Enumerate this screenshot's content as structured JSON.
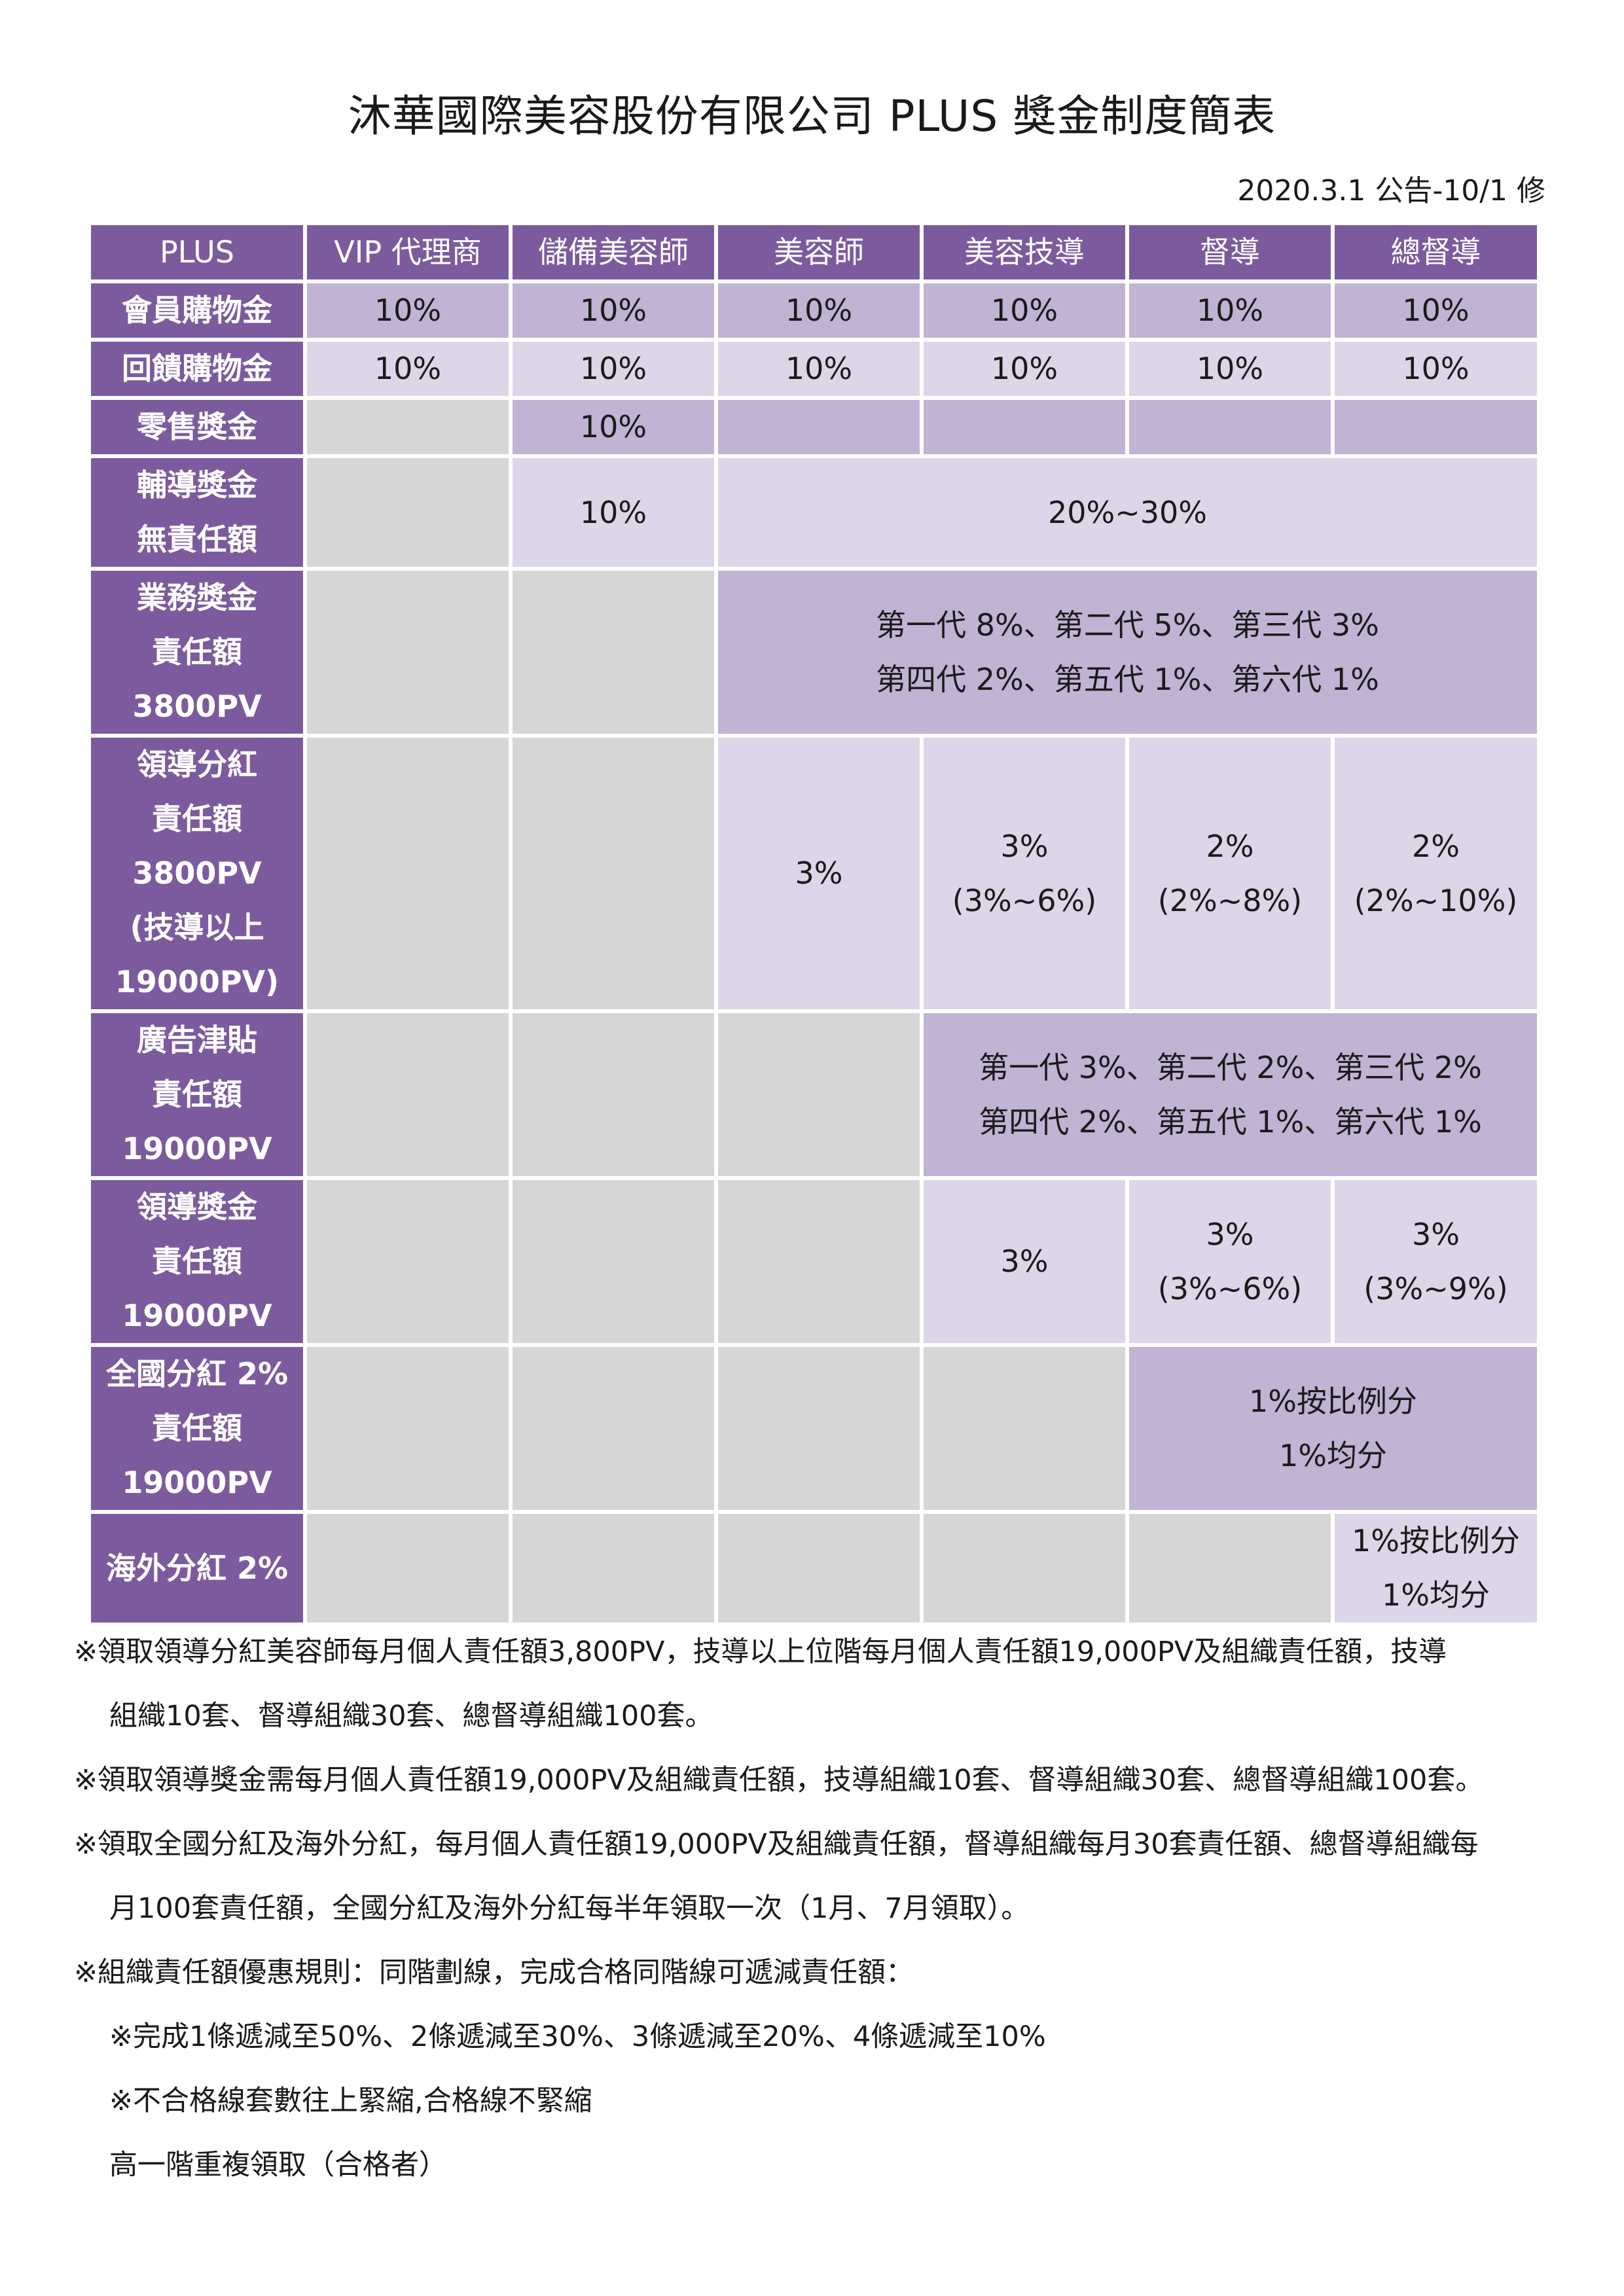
{
  "title": "沐華國際美容股份有限公司 PLUS 獎金制度簡表",
  "date": "2020.3.1 公告-10/1 修",
  "table": {
    "headers": [
      "PLUS",
      "VIP 代理商",
      "儲備美容師",
      "美容師",
      "美容技導",
      "督導",
      "總督導"
    ],
    "rows": {
      "member": {
        "label": "會員購物金",
        "values": [
          "10%",
          "10%",
          "10%",
          "10%",
          "10%",
          "10%"
        ]
      },
      "feedback": {
        "label": "回饋購物金",
        "values": [
          "10%",
          "10%",
          "10%",
          "10%",
          "10%",
          "10%"
        ]
      },
      "retail": {
        "label": "零售獎金",
        "value": "10%"
      },
      "coaching": {
        "label1": "輔導獎金",
        "label2": "無責任額",
        "value_reserve": "10%",
        "value_span": "20%~30%"
      },
      "business": {
        "label1": "業務獎金",
        "label2": "責任額",
        "label3": "3800PV",
        "line1": "第一代  8%、第二代  5%、第三代  3%",
        "line2": "第四代  2%、第五代  1%、第六代  1%"
      },
      "leadership_dividend": {
        "label1": "領導分紅",
        "label2": "責任額",
        "label3": "3800PV",
        "label4": "(技導以上",
        "label5": "19000PV)",
        "beautician": "3%",
        "tech_main": "3%",
        "tech_range": "(3%~6%)",
        "supervisor_main": "2%",
        "supervisor_range": "(2%~8%)",
        "chief_main": "2%",
        "chief_range": "(2%~10%)"
      },
      "advertising": {
        "label1": "廣告津貼",
        "label2": "責任額",
        "label3": "19000PV",
        "line1": "第一代  3%、第二代  2%、第三代  2%",
        "line2": "第四代  2%、第五代  1%、第六代  1%"
      },
      "leadership_bonus": {
        "label1": "領導獎金",
        "label2": "責任額",
        "label3": "19000PV",
        "tech": "3%",
        "supervisor_main": "3%",
        "supervisor_range": "(3%~6%)",
        "chief_main": "3%",
        "chief_range": "(3%~9%)"
      },
      "national": {
        "label1": "全國分紅 2%",
        "label2": "責任額",
        "label3": "19000PV",
        "line1": "1%按比例分",
        "line2": "1%均分"
      },
      "overseas": {
        "label": "海外分紅 2%",
        "line1": "1%按比例分",
        "line2": "1%均分"
      }
    }
  },
  "notes": {
    "n1a": "※領取領導分紅美容師每月個人責任額3,800PV，技導以上位階每月個人責任額19,000PV及組織責任額，技導",
    "n1b": "組織10套、督導組織30套、總督導組織100套。",
    "n2": "※領取領導獎金需每月個人責任額19,000PV及組織責任額，技導組織10套、督導組織30套、總督導組織100套。",
    "n3a": "※領取全國分紅及海外分紅，每月個人責任額19,000PV及組織責任額，督導組織每月30套責任額、總督導組織每",
    "n3b": "月100套責任額，全國分紅及海外分紅每半年領取一次（1月、7月領取）。",
    "n4": "※組織責任額優惠規則：同階劃線，完成合格同階線可遞減責任額：",
    "n5": "※完成1條遞減至50%、2條遞減至30%、3條遞減至20%、4條遞減至10%",
    "n6": "※不合格線套數往上緊縮,合格線不緊縮",
    "n7": "高一階重複領取（合格者）"
  }
}
